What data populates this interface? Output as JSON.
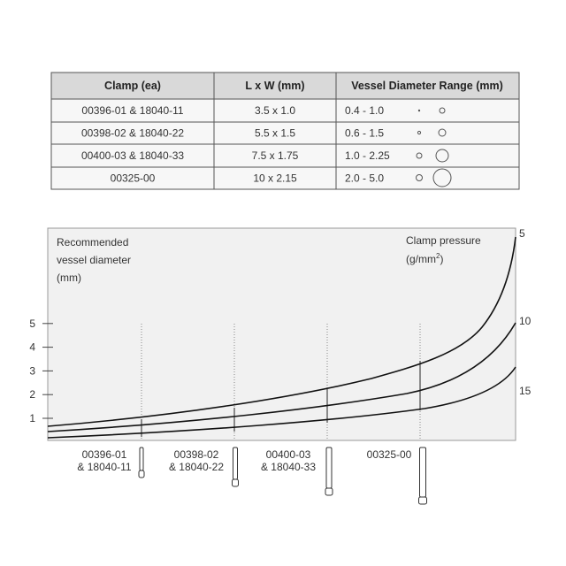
{
  "table": {
    "header": [
      "Clamp (ea)",
      "L x W (mm)",
      "Vessel Diameter Range (mm)"
    ],
    "rows": [
      [
        "00396-01 & 18040-11",
        "3.5 x 1.0",
        "0.4 - 1.0"
      ],
      [
        "00398-02 & 18040-22",
        "5.5 x 1.5",
        "0.6 - 1.5"
      ],
      [
        "00400-03 & 18040-33",
        "7.5 x 1.75",
        "1.0 - 2.25"
      ],
      [
        "00325-00",
        "10 x 2.15",
        "2.0 - 5.0"
      ]
    ]
  },
  "chart": {
    "y_label": [
      "Recommended",
      "vessel diameter",
      "(mm)"
    ],
    "y_ticks": [
      1,
      2,
      3,
      4,
      5
    ],
    "pressure_label": [
      "Clamp pressure",
      "(g/mm",
      "2",
      ")"
    ],
    "pressure_curves": [
      5,
      10,
      15
    ],
    "clamps": [
      [
        "00396-01",
        "& 18040-11"
      ],
      [
        "00398-02",
        "& 18040-22"
      ],
      [
        "00400-03",
        "& 18040-33"
      ],
      [
        "00325-00"
      ]
    ]
  }
}
